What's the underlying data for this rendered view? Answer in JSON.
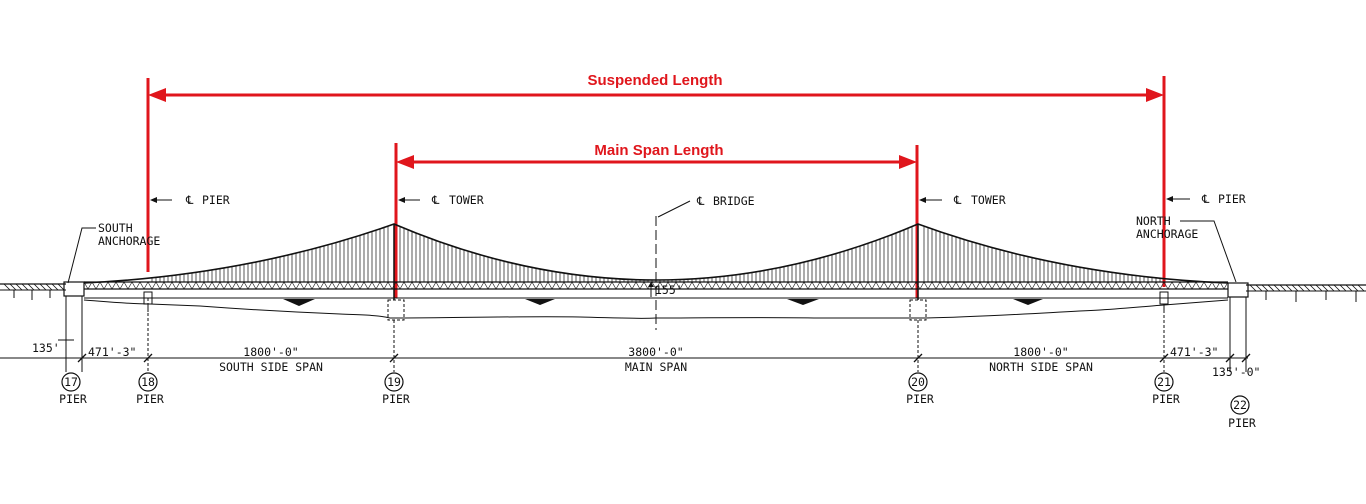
{
  "dimensions": {
    "suspended_length": "Suspended Length",
    "main_span_length": "Main Span Length"
  },
  "callouts": {
    "south_pier": "PIER",
    "south_tower": "TOWER",
    "bridge": "BRIDGE",
    "north_tower": "TOWER",
    "north_pier": "PIER",
    "centerline_symbol": "℄",
    "south_anchorage_1": "SOUTH",
    "south_anchorage_2": "ANCHORAGE",
    "north_anchorage_1": "NORTH",
    "north_anchorage_2": "ANCHORAGE"
  },
  "clearance": "155'",
  "span_dims": {
    "d17": "135'",
    "d18": "471'-3\"",
    "south_side_value": "1800'-0\"",
    "south_side_name": "SOUTH SIDE SPAN",
    "main_value": "3800'-0\"",
    "main_name": "MAIN SPAN",
    "north_side_value": "1800'-0\"",
    "north_side_name": "NORTH SIDE SPAN",
    "d21": "471'-3\"",
    "d22": "135'-0\""
  },
  "piers": [
    {
      "number": "17",
      "label": "PIER"
    },
    {
      "number": "18",
      "label": "PIER"
    },
    {
      "number": "19",
      "label": "PIER"
    },
    {
      "number": "20",
      "label": "PIER"
    },
    {
      "number": "21",
      "label": "PIER"
    },
    {
      "number": "22",
      "label": "PIER"
    }
  ],
  "colors": {
    "dimension_red": "#e0161c",
    "linework": "#111111"
  }
}
